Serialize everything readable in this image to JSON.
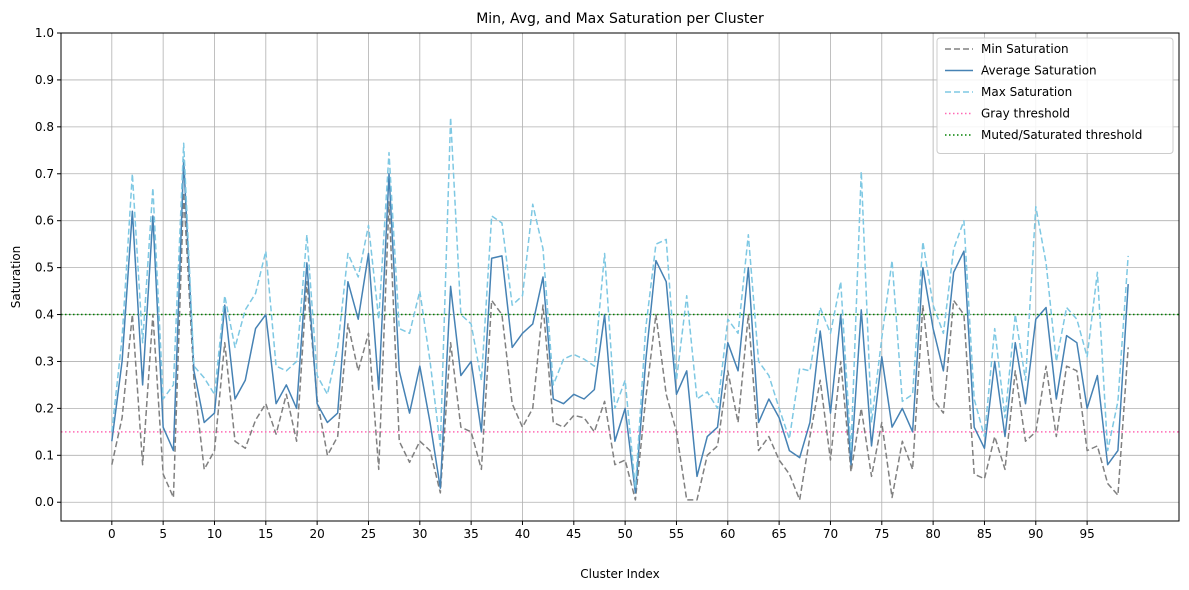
{
  "chart_data": {
    "type": "line",
    "title": "Min, Avg, and Max Saturation per Cluster",
    "xlabel": "Cluster Index",
    "ylabel": "Saturation",
    "xlim": [
      -4.95,
      103.95
    ],
    "ylim": [
      -0.04,
      1.0
    ],
    "xticks": [
      0,
      5,
      10,
      15,
      20,
      25,
      30,
      35,
      40,
      45,
      50,
      55,
      60,
      65,
      70,
      75,
      80,
      85,
      90,
      95
    ],
    "yticks": [
      0.0,
      0.1,
      0.2,
      0.3,
      0.4,
      0.5,
      0.6,
      0.7,
      0.8,
      0.9,
      1.0
    ],
    "grid": true,
    "legend_position": "top-right",
    "x": [
      0,
      1,
      2,
      3,
      4,
      5,
      6,
      7,
      8,
      9,
      10,
      11,
      12,
      13,
      14,
      15,
      16,
      17,
      18,
      19,
      20,
      21,
      22,
      23,
      24,
      25,
      26,
      27,
      28,
      29,
      30,
      31,
      32,
      33,
      34,
      35,
      36,
      37,
      38,
      39,
      40,
      41,
      42,
      43,
      44,
      45,
      46,
      47,
      48,
      49,
      50,
      51,
      52,
      53,
      54,
      55,
      56,
      57,
      58,
      59,
      60,
      61,
      62,
      63,
      64,
      65,
      66,
      67,
      68,
      69,
      70,
      71,
      72,
      73,
      74,
      75,
      76,
      77,
      78,
      79,
      80,
      81,
      82,
      83,
      84,
      85,
      86,
      87,
      88,
      89,
      90,
      91,
      92,
      93,
      94,
      95,
      96,
      97,
      98,
      99
    ],
    "series": [
      {
        "name": "Min Saturation",
        "color": "#808080",
        "dash": "dashed",
        "values": [
          0.08,
          0.18,
          0.4,
          0.08,
          0.4,
          0.06,
          0.01,
          0.66,
          0.26,
          0.07,
          0.11,
          0.34,
          0.13,
          0.115,
          0.175,
          0.21,
          0.145,
          0.23,
          0.13,
          0.47,
          0.22,
          0.1,
          0.14,
          0.38,
          0.28,
          0.36,
          0.07,
          0.64,
          0.13,
          0.085,
          0.13,
          0.11,
          0.02,
          0.34,
          0.16,
          0.15,
          0.07,
          0.43,
          0.4,
          0.21,
          0.16,
          0.2,
          0.42,
          0.17,
          0.16,
          0.185,
          0.18,
          0.15,
          0.215,
          0.08,
          0.09,
          0.005,
          0.22,
          0.4,
          0.23,
          0.15,
          0.005,
          0.005,
          0.1,
          0.12,
          0.28,
          0.17,
          0.4,
          0.11,
          0.14,
          0.09,
          0.06,
          0.005,
          0.14,
          0.26,
          0.09,
          0.3,
          0.065,
          0.2,
          0.055,
          0.17,
          0.01,
          0.13,
          0.07,
          0.42,
          0.22,
          0.19,
          0.43,
          0.4,
          0.06,
          0.05,
          0.14,
          0.07,
          0.28,
          0.13,
          0.15,
          0.29,
          0.14,
          0.29,
          0.28,
          0.11,
          0.12,
          0.04,
          0.015,
          0.33
        ]
      },
      {
        "name": "Average Saturation",
        "color": "#4682b4",
        "dash": "solid",
        "values": [
          0.13,
          0.3,
          0.62,
          0.25,
          0.61,
          0.16,
          0.11,
          0.73,
          0.28,
          0.17,
          0.19,
          0.42,
          0.22,
          0.26,
          0.37,
          0.4,
          0.21,
          0.25,
          0.2,
          0.51,
          0.21,
          0.17,
          0.19,
          0.47,
          0.39,
          0.53,
          0.24,
          0.7,
          0.28,
          0.19,
          0.29,
          0.17,
          0.03,
          0.46,
          0.27,
          0.3,
          0.15,
          0.52,
          0.525,
          0.33,
          0.36,
          0.38,
          0.48,
          0.22,
          0.21,
          0.23,
          0.22,
          0.24,
          0.4,
          0.13,
          0.2,
          0.02,
          0.3,
          0.515,
          0.47,
          0.23,
          0.28,
          0.055,
          0.14,
          0.16,
          0.34,
          0.28,
          0.5,
          0.17,
          0.22,
          0.18,
          0.11,
          0.095,
          0.17,
          0.365,
          0.19,
          0.4,
          0.08,
          0.41,
          0.12,
          0.31,
          0.16,
          0.2,
          0.15,
          0.5,
          0.37,
          0.28,
          0.49,
          0.535,
          0.16,
          0.115,
          0.3,
          0.14,
          0.34,
          0.21,
          0.39,
          0.415,
          0.22,
          0.355,
          0.34,
          0.2,
          0.27,
          0.08,
          0.11,
          0.465
        ]
      },
      {
        "name": "Max Saturation",
        "color": "#7ec8e3",
        "dash": "dashed",
        "values": [
          0.15,
          0.35,
          0.7,
          0.34,
          0.67,
          0.22,
          0.25,
          0.765,
          0.29,
          0.265,
          0.23,
          0.44,
          0.33,
          0.41,
          0.445,
          0.535,
          0.29,
          0.28,
          0.3,
          0.57,
          0.27,
          0.23,
          0.33,
          0.53,
          0.48,
          0.59,
          0.39,
          0.745,
          0.37,
          0.36,
          0.45,
          0.3,
          0.12,
          0.82,
          0.4,
          0.38,
          0.26,
          0.61,
          0.595,
          0.42,
          0.44,
          0.635,
          0.54,
          0.25,
          0.305,
          0.315,
          0.305,
          0.29,
          0.53,
          0.2,
          0.26,
          0.03,
          0.37,
          0.55,
          0.56,
          0.26,
          0.44,
          0.22,
          0.235,
          0.2,
          0.39,
          0.36,
          0.57,
          0.3,
          0.27,
          0.2,
          0.135,
          0.285,
          0.28,
          0.415,
          0.36,
          0.47,
          0.11,
          0.705,
          0.17,
          0.35,
          0.515,
          0.215,
          0.23,
          0.555,
          0.42,
          0.36,
          0.54,
          0.6,
          0.22,
          0.14,
          0.37,
          0.18,
          0.4,
          0.26,
          0.63,
          0.51,
          0.3,
          0.415,
          0.39,
          0.31,
          0.49,
          0.11,
          0.215,
          0.525
        ]
      }
    ],
    "hlines": [
      {
        "name": "Gray threshold",
        "y": 0.15,
        "color": "#ff69b4",
        "dash": "dotted"
      },
      {
        "name": "Muted/Saturated threshold",
        "y": 0.4,
        "color": "#008000",
        "dash": "dotted"
      }
    ]
  }
}
